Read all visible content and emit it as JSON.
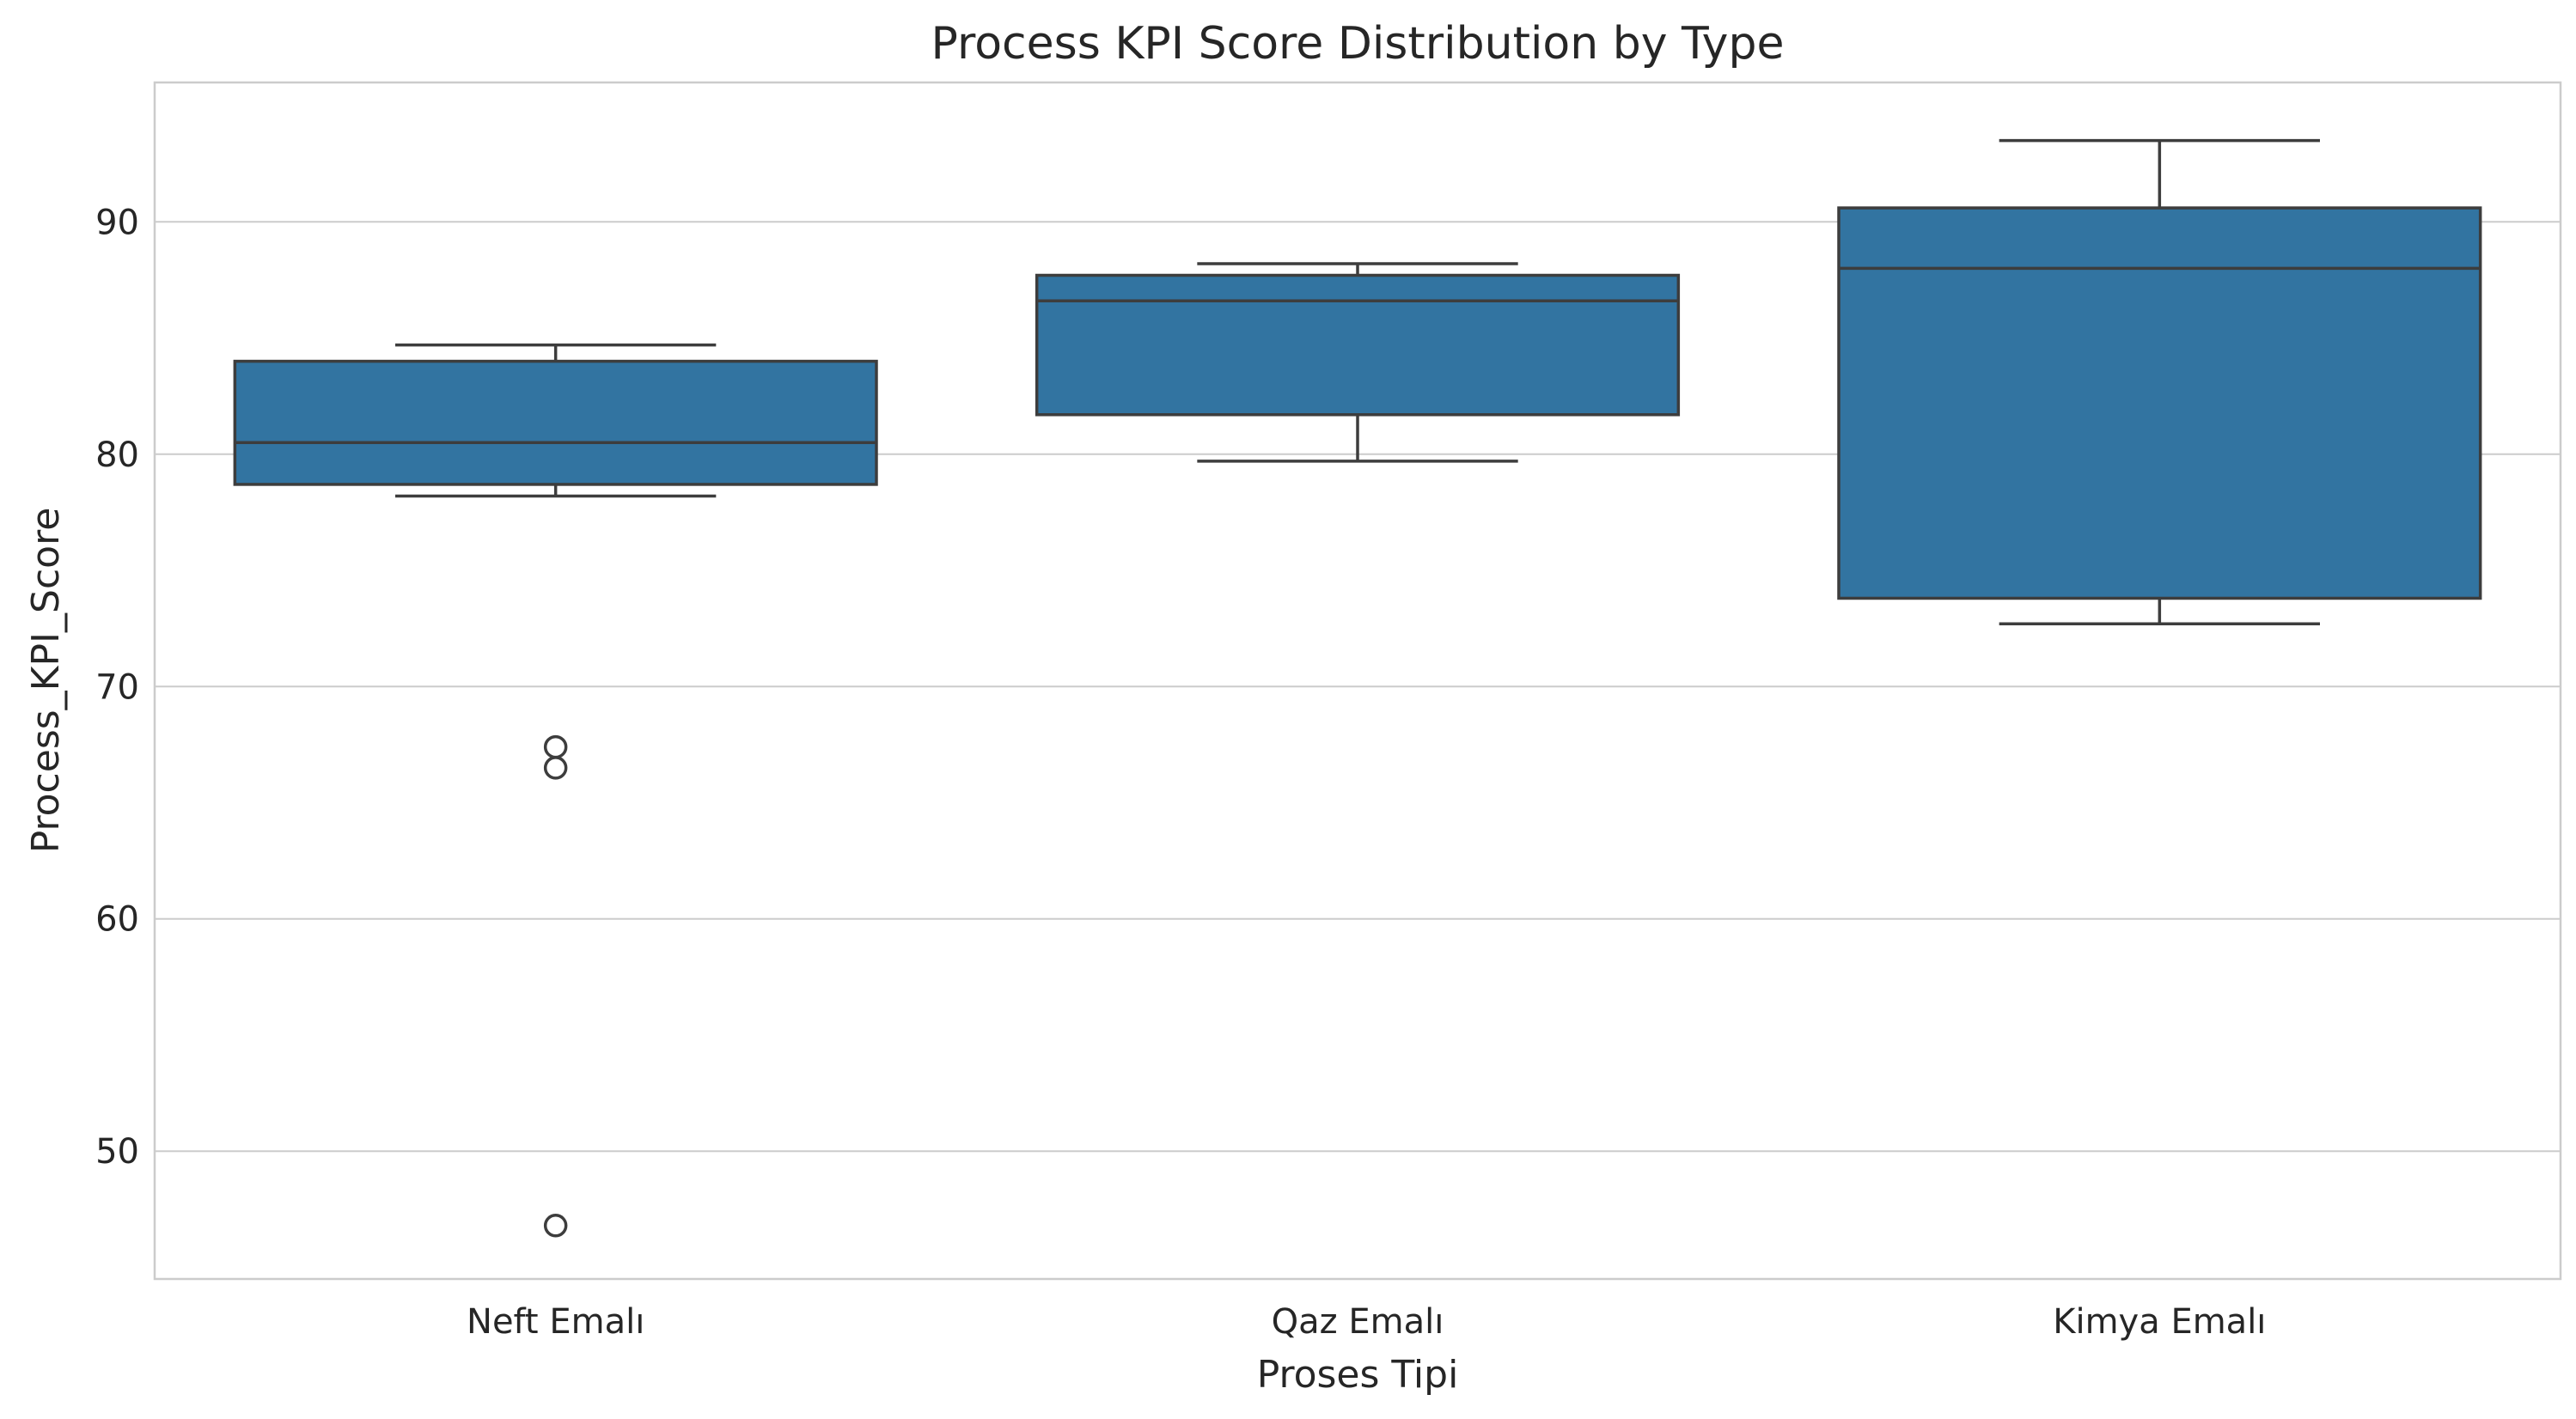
{
  "chart_data": {
    "type": "box",
    "title": "Process KPI Score Distribution by Type",
    "xlabel": "Proses Tipi",
    "ylabel": "Process_KPI_Score",
    "ylim": [
      44.5,
      96
    ],
    "yticks": [
      50,
      60,
      70,
      80,
      90
    ],
    "grid": true,
    "colors": {
      "box": "#3274a1",
      "line": "#3d3d3d",
      "grid": "#cccccc"
    },
    "categories": [
      "Neft Emalı",
      "Qaz Emalı",
      "Kimya Emalı"
    ],
    "boxes": [
      {
        "category": "Neft Emalı",
        "whisker_low": 78.2,
        "q1": 78.7,
        "median": 80.5,
        "q3": 84.0,
        "whisker_high": 84.7,
        "outliers": [
          67.4,
          66.5,
          46.8
        ]
      },
      {
        "category": "Qaz Emalı",
        "whisker_low": 79.7,
        "q1": 81.7,
        "median": 86.6,
        "q3": 87.7,
        "whisker_high": 88.2,
        "outliers": []
      },
      {
        "category": "Kimya Emalı",
        "whisker_low": 72.7,
        "q1": 73.8,
        "median": 88.0,
        "q3": 90.6,
        "whisker_high": 93.5,
        "outliers": []
      }
    ]
  }
}
